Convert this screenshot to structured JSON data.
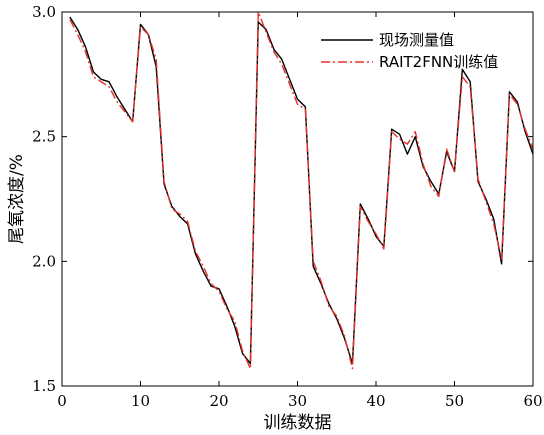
{
  "chart_data": {
    "type": "line",
    "xlabel": "训练数据",
    "ylabel": "尾氧浓度/%",
    "xlim": [
      0,
      60
    ],
    "ylim": [
      1.5,
      3.0
    ],
    "xticks": [
      "0",
      "10",
      "20",
      "30",
      "40",
      "50",
      "60"
    ],
    "yticks": [
      "1.5",
      "2.0",
      "2.5",
      "3.0"
    ],
    "legend_position": "top-right",
    "grid": false,
    "x": [
      1,
      2,
      3,
      4,
      5,
      6,
      7,
      8,
      9,
      10,
      11,
      12,
      13,
      14,
      15,
      16,
      17,
      18,
      19,
      20,
      21,
      22,
      23,
      24,
      25,
      26,
      27,
      28,
      29,
      30,
      31,
      32,
      33,
      34,
      35,
      36,
      37,
      38,
      39,
      40,
      41,
      42,
      43,
      44,
      45,
      46,
      47,
      48,
      49,
      50,
      51,
      52,
      53,
      54,
      55,
      56,
      57,
      58,
      59,
      60
    ],
    "series": [
      {
        "name": "现场测量值",
        "color": "#000000",
        "style": "solid",
        "values": [
          2.98,
          2.93,
          2.86,
          2.76,
          2.73,
          2.72,
          2.66,
          2.61,
          2.56,
          2.95,
          2.91,
          2.78,
          2.31,
          2.22,
          2.18,
          2.15,
          2.03,
          1.96,
          1.9,
          1.89,
          1.82,
          1.74,
          1.63,
          1.59,
          2.96,
          2.93,
          2.85,
          2.81,
          2.73,
          2.65,
          2.62,
          1.98,
          1.91,
          1.83,
          1.77,
          1.69,
          1.59,
          2.23,
          2.17,
          2.1,
          2.06,
          2.53,
          2.51,
          2.43,
          2.5,
          2.38,
          2.32,
          2.27,
          2.44,
          2.36,
          2.77,
          2.72,
          2.32,
          2.25,
          2.17,
          1.99,
          2.68,
          2.64,
          2.52,
          2.43
        ]
      },
      {
        "name": "RAIT2FNN训练值",
        "color": "#e8302a",
        "style": "dashdot",
        "values": [
          2.97,
          2.91,
          2.84,
          2.74,
          2.72,
          2.7,
          2.64,
          2.6,
          2.56,
          2.94,
          2.91,
          2.81,
          2.32,
          2.21,
          2.19,
          2.16,
          2.04,
          1.98,
          1.91,
          1.88,
          1.81,
          1.76,
          1.64,
          1.57,
          3.0,
          2.92,
          2.84,
          2.79,
          2.71,
          2.63,
          2.61,
          2.0,
          1.92,
          1.82,
          1.78,
          1.7,
          1.57,
          2.22,
          2.16,
          2.11,
          2.05,
          2.52,
          2.49,
          2.47,
          2.52,
          2.39,
          2.3,
          2.26,
          2.45,
          2.36,
          2.74,
          2.7,
          2.33,
          2.24,
          2.15,
          2.01,
          2.67,
          2.63,
          2.53,
          2.45
        ]
      }
    ]
  }
}
